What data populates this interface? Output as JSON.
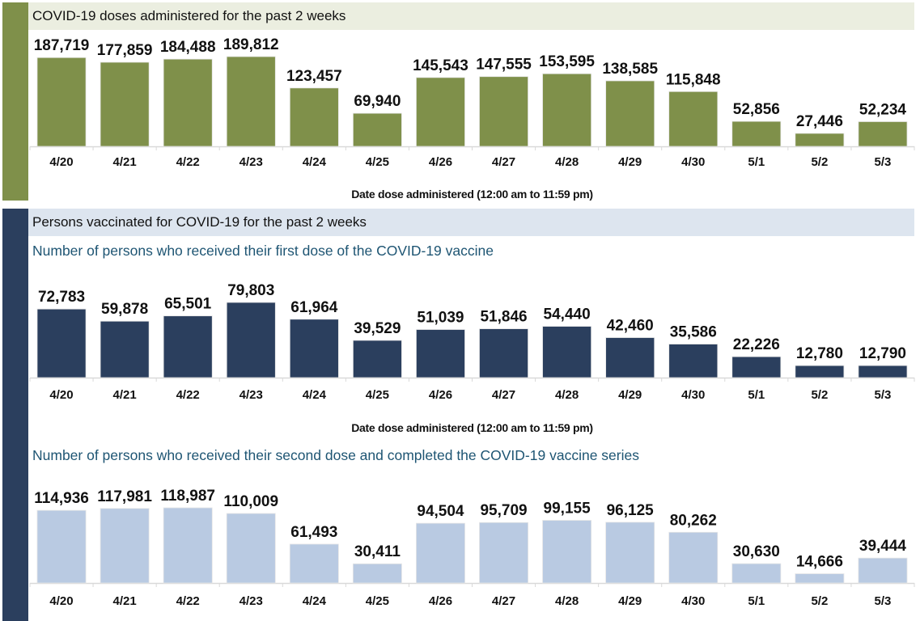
{
  "chart_data": [
    {
      "type": "bar",
      "title": "COVID-19 doses administered for the past 2 weeks",
      "subtitle": "",
      "xlabel": "Date dose administered (12:00 am to 11:59 pm)",
      "ylabel": "",
      "categories": [
        "4/20",
        "4/21",
        "4/22",
        "4/23",
        "4/24",
        "4/25",
        "4/26",
        "4/27",
        "4/28",
        "4/29",
        "4/30",
        "5/1",
        "5/2",
        "5/3"
      ],
      "values": [
        187719,
        177859,
        184488,
        189812,
        123457,
        69940,
        145543,
        147555,
        153595,
        138585,
        115848,
        52856,
        27446,
        52234
      ],
      "value_labels": [
        "187,719",
        "177,859",
        "184,488",
        "189,812",
        "123,457",
        "69,940",
        "145,543",
        "147,555",
        "153,595",
        "138,585",
        "115,848",
        "52,856",
        "27,446",
        "52,234"
      ],
      "ylim": [
        0,
        189812
      ],
      "grid": false,
      "color": "#7f904a"
    },
    {
      "type": "bar",
      "title": "Persons vaccinated for COVID-19 for the past 2 weeks",
      "subtitle": "Number of persons who received their first dose of the COVID-19 vaccine",
      "xlabel": "Date dose administered (12:00 am to 11:59 pm)",
      "ylabel": "",
      "categories": [
        "4/20",
        "4/21",
        "4/22",
        "4/23",
        "4/24",
        "4/25",
        "4/26",
        "4/27",
        "4/28",
        "4/29",
        "4/30",
        "5/1",
        "5/2",
        "5/3"
      ],
      "values": [
        72783,
        59878,
        65501,
        79803,
        61964,
        39529,
        51039,
        51846,
        54440,
        42460,
        35586,
        22226,
        12780,
        12790
      ],
      "value_labels": [
        "72,783",
        "59,878",
        "65,501",
        "79,803",
        "61,964",
        "39,529",
        "51,039",
        "51,846",
        "54,440",
        "42,460",
        "35,586",
        "22,226",
        "12,780",
        "12,790"
      ],
      "ylim": [
        0,
        79803
      ],
      "grid": false,
      "color": "#2b3f5e"
    },
    {
      "type": "bar",
      "title": "",
      "subtitle": "Number of persons who received their second dose and completed the COVID-19 vaccine series",
      "xlabel": "",
      "ylabel": "",
      "categories": [
        "4/20",
        "4/21",
        "4/22",
        "4/23",
        "4/24",
        "4/25",
        "4/26",
        "4/27",
        "4/28",
        "4/29",
        "4/30",
        "5/1",
        "5/2",
        "5/3"
      ],
      "values": [
        114936,
        117981,
        118987,
        110009,
        61493,
        30411,
        94504,
        95709,
        99155,
        96125,
        80262,
        30630,
        14666,
        39444
      ],
      "value_labels": [
        "114,936",
        "117,981",
        "118,987",
        "110,009",
        "61,493",
        "30,411",
        "94,504",
        "95,709",
        "99,155",
        "96,125",
        "80,262",
        "30,630",
        "14,666",
        "39,444"
      ],
      "ylim": [
        0,
        118987
      ],
      "grid": false,
      "color": "#b9cae2"
    }
  ]
}
